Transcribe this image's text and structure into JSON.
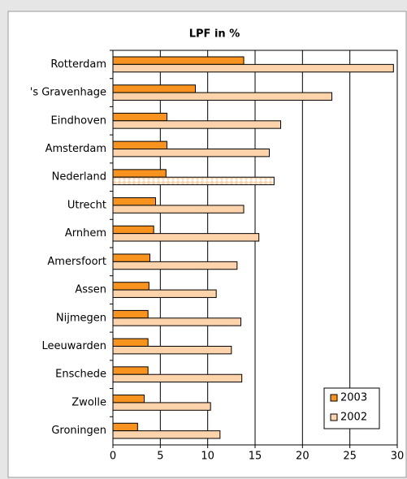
{
  "chart_data": {
    "type": "bar",
    "orientation": "horizontal",
    "title": "LPF in %",
    "categories": [
      "Rotterdam",
      "'s Gravenhage",
      "Eindhoven",
      "Amsterdam",
      "Nederland",
      "Utrecht",
      "Arnhem",
      "Amersfoort",
      "Assen",
      "Nijmegen",
      "Leeuwarden",
      "Enschede",
      "Zwolle",
      "Groningen"
    ],
    "series": [
      {
        "name": "2003",
        "color": "#f7931e",
        "values": [
          13.8,
          8.7,
          5.7,
          5.7,
          5.6,
          4.5,
          4.3,
          3.9,
          3.8,
          3.7,
          3.7,
          3.7,
          3.3,
          2.6
        ]
      },
      {
        "name": "2002",
        "color": "#fdd3ab",
        "values": [
          29.6,
          23.1,
          17.7,
          16.5,
          17.0,
          13.8,
          15.4,
          13.1,
          10.9,
          13.5,
          12.5,
          13.6,
          10.3,
          11.3
        ]
      }
    ],
    "xlim": [
      0,
      30
    ],
    "xticks": [
      0,
      5,
      10,
      15,
      20,
      25,
      30
    ],
    "grid": true,
    "legend": "lower right"
  }
}
